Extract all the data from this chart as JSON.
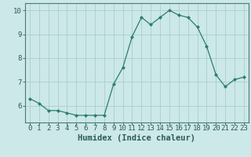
{
  "x": [
    0,
    1,
    2,
    3,
    4,
    5,
    6,
    7,
    8,
    9,
    10,
    11,
    12,
    13,
    14,
    15,
    16,
    17,
    18,
    19,
    20,
    21,
    22,
    23
  ],
  "y": [
    6.3,
    6.1,
    5.8,
    5.8,
    5.7,
    5.6,
    5.6,
    5.6,
    5.6,
    6.9,
    7.6,
    8.9,
    9.7,
    9.4,
    9.7,
    10.0,
    9.8,
    9.7,
    9.3,
    8.5,
    7.3,
    6.8,
    7.1,
    7.2
  ],
  "xlabel": "Humidex (Indice chaleur)",
  "ylim": [
    5.3,
    10.3
  ],
  "xlim": [
    -0.5,
    23.5
  ],
  "yticks": [
    6,
    7,
    8,
    9,
    10
  ],
  "xticks": [
    0,
    1,
    2,
    3,
    4,
    5,
    6,
    7,
    8,
    9,
    10,
    11,
    12,
    13,
    14,
    15,
    16,
    17,
    18,
    19,
    20,
    21,
    22,
    23
  ],
  "line_color": "#2d7d6e",
  "marker_color": "#2d7d6e",
  "bg_color": "#cce8e8",
  "grid_color": "#aacece",
  "spine_color": "#4a7a7a",
  "label_color": "#2d5a5a",
  "font_size_axis": 6.5,
  "font_size_label": 7.5
}
